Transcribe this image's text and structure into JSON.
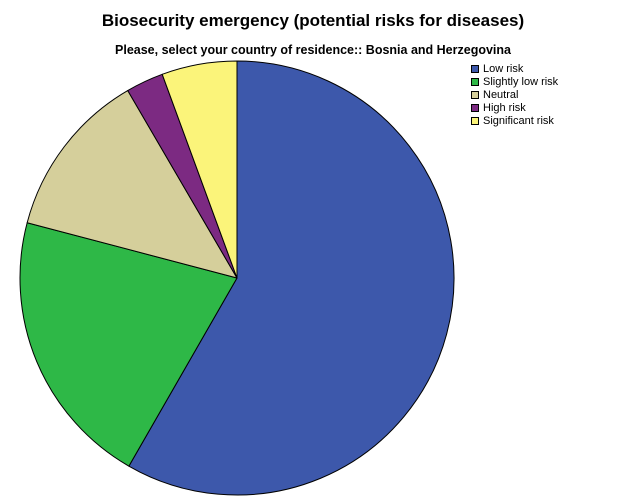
{
  "chart_data": {
    "type": "pie",
    "title": "Biosecurity emergency (potential risks for diseases)",
    "subtitle": "Please, select your country of residence:: Bosnia and Herzegovina",
    "categories": [
      "Low risk",
      "Slightly low risk",
      "Neutral",
      "High risk",
      "Significant risk"
    ],
    "values": [
      58.3,
      20.8,
      12.5,
      2.8,
      5.6
    ],
    "colors": [
      "#3d58ab",
      "#2eb847",
      "#d5cf9b",
      "#7c2a82",
      "#fbf47a"
    ],
    "start_angle": "12 o'clock",
    "direction": "clockwise",
    "legend_position": "top-right"
  }
}
